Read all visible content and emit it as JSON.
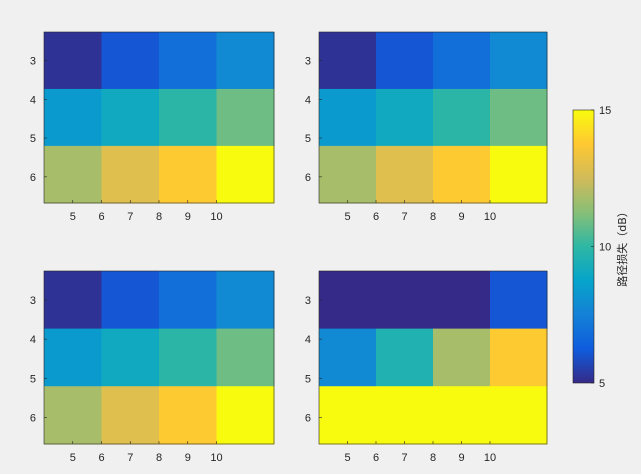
{
  "colorbar": {
    "label": "路径损失（dB）",
    "ticks": [
      5,
      10,
      15
    ],
    "ylim": [
      5,
      15
    ],
    "colormap": [
      "#352a87",
      "#0f5cdd",
      "#1481d6",
      "#06a4ca",
      "#2eb7a4",
      "#87bf77",
      "#d1bb59",
      "#fec832",
      "#f9fb0e"
    ]
  },
  "chart_data": [
    {
      "type": "heatmap",
      "position": "top-left",
      "x_tick_labels": [
        "5",
        "6",
        "7",
        "8",
        "9",
        "10"
      ],
      "y_tick_labels": [
        "3",
        "4",
        "5",
        "6"
      ],
      "color_range": [
        5,
        15
      ],
      "rows": [
        [
          5.2,
          6.1,
          6.9,
          7.8
        ],
        [
          8.4,
          9.1,
          9.9,
          10.9
        ],
        [
          11.8,
          12.9,
          13.8,
          15.0
        ]
      ]
    },
    {
      "type": "heatmap",
      "position": "top-right",
      "x_tick_labels": [
        "5",
        "6",
        "7",
        "8",
        "9",
        "10"
      ],
      "y_tick_labels": [
        "3",
        "4",
        "5",
        "6"
      ],
      "color_range": [
        5,
        15
      ],
      "rows": [
        [
          5.2,
          6.1,
          6.9,
          7.8
        ],
        [
          8.4,
          9.1,
          9.9,
          10.9
        ],
        [
          11.8,
          12.9,
          13.8,
          15.0
        ]
      ]
    },
    {
      "type": "heatmap",
      "position": "bottom-left",
      "x_tick_labels": [
        "5",
        "6",
        "7",
        "8",
        "9",
        "10"
      ],
      "y_tick_labels": [
        "3",
        "4",
        "5",
        "6"
      ],
      "color_range": [
        5,
        15
      ],
      "rows": [
        [
          5.2,
          6.1,
          6.9,
          7.8
        ],
        [
          8.4,
          9.1,
          9.9,
          10.9
        ],
        [
          11.8,
          12.9,
          13.8,
          15.0
        ]
      ]
    },
    {
      "type": "heatmap",
      "position": "bottom-right",
      "x_tick_labels": [
        "5",
        "6",
        "7",
        "8",
        "9",
        "10"
      ],
      "y_tick_labels": [
        "3",
        "4",
        "5",
        "6"
      ],
      "color_range": [
        5,
        15
      ],
      "rows": [
        [
          5.0,
          5.0,
          5.0,
          6.1
        ],
        [
          7.8,
          9.6,
          11.8,
          13.8
        ],
        [
          15.0,
          15.0,
          15.0,
          15.0
        ]
      ]
    }
  ]
}
